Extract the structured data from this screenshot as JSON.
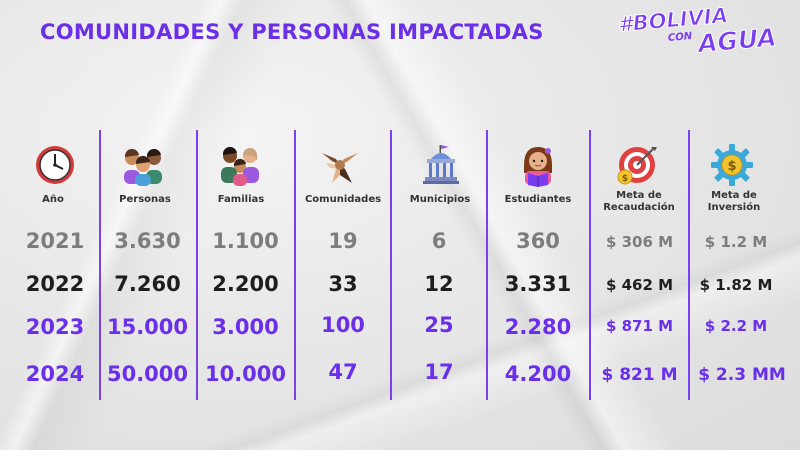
{
  "title": "COMUNIDADES Y PERSONAS IMPACTADAS",
  "logo": {
    "line1": "#BOLIVIA",
    "line2": "CON",
    "line3": "AGUA"
  },
  "colors": {
    "accent": "#6b2fe8",
    "row2021": "#7d7d7d",
    "row2022": "#1e1e1e",
    "row2023": "#6a2fe9",
    "row2024": "#6a2fe9"
  },
  "headers": {
    "year": "Año",
    "people": "Personas",
    "families": "Familias",
    "communities": "Comunidades",
    "municipalities": "Municipios",
    "students": "Estudiantes",
    "fundraising": "Meta de Recaudación",
    "investment": "Meta de Inversión"
  },
  "icons": {
    "year": "clock-icon",
    "people": "group-people-icon",
    "families": "family-icon",
    "communities": "joined-hands-icon",
    "municipalities": "government-building-icon",
    "students": "student-reading-icon",
    "fundraising": "target-money-icon",
    "investment": "gear-dollar-icon"
  },
  "rows": [
    {
      "year": "2021",
      "people": "3.630",
      "families": "1.100",
      "communities": "19",
      "municipalities": "6",
      "students": "360",
      "fundraising": "$ 306 M",
      "investment": "$ 1.2 M"
    },
    {
      "year": "2022",
      "people": "7.260",
      "families": "2.200",
      "communities": "33",
      "municipalities": "12",
      "students": "3.331",
      "fundraising": "$ 462 M",
      "investment": "$ 1.82 M"
    },
    {
      "year": "2023",
      "people": "15.000",
      "families": "3.000",
      "communities": "100",
      "municipalities": "25",
      "students": "2.280",
      "fundraising": "$ 871 M",
      "investment": "$ 2.2 M"
    },
    {
      "year": "2024",
      "people": "50.000",
      "families": "10.000",
      "communities": "47",
      "municipalities": "17",
      "students": "4.200",
      "fundraising": "$ 821 M",
      "investment": "$ 2.3 MM"
    }
  ]
}
